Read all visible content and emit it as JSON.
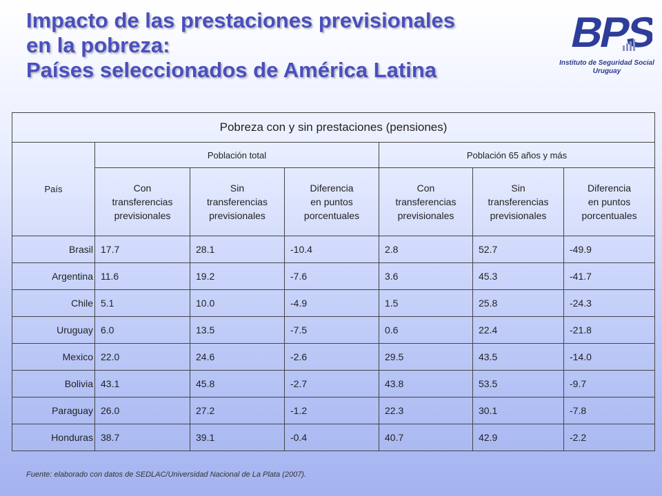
{
  "title": {
    "line1": "Impacto de las prestaciones previsionales",
    "line2": "en la pobreza:",
    "line3": "Países seleccionados de América Latina"
  },
  "logo": {
    "text": "BPS",
    "subtitle_line1": "Instituto de Seguridad Social",
    "subtitle_line2": "Uruguay",
    "colors": {
      "letters": "#2e3d99",
      "bars": "#8a93c4"
    }
  },
  "table": {
    "caption": "Pobreza con y sin prestaciones (pensiones)",
    "country_header": "País",
    "groups": [
      "Población total",
      "Población 65 años y más"
    ],
    "subheaders": [
      [
        "Con",
        "transferencias",
        "previsionales"
      ],
      [
        "Sin",
        "transferencias",
        "previsionales"
      ],
      [
        "Diferencia",
        "en puntos",
        "porcentuales"
      ],
      [
        "Con",
        "transferencias",
        "previsionales"
      ],
      [
        "Sin",
        "transferencias",
        "previsionales"
      ],
      [
        "Diferencia",
        "en puntos",
        "porcentuales"
      ]
    ],
    "rows": [
      [
        "Brasil",
        "17.7",
        "28.1",
        "-10.4",
        "2.8",
        "52.7",
        "-49.9"
      ],
      [
        "Argentina",
        "11.6",
        "19.2",
        "-7.6",
        "3.6",
        "45.3",
        "-41.7"
      ],
      [
        "Chile",
        "5.1",
        "10.0",
        "-4.9",
        "1.5",
        "25.8",
        "-24.3"
      ],
      [
        "Uruguay",
        "6.0",
        "13.5",
        "-7.5",
        "0.6",
        "22.4",
        "-21.8"
      ],
      [
        "Mexico",
        "22.0",
        "24.6",
        "-2.6",
        "29.5",
        "43.5",
        "-14.0"
      ],
      [
        "Bolivia",
        "43.1",
        "45.8",
        "-2.7",
        "43.8",
        "53.5",
        "-9.7"
      ],
      [
        "Paraguay",
        "26.0",
        "27.2",
        "-1.2",
        "22.3",
        "30.1",
        "-7.8"
      ],
      [
        "Honduras",
        "38.7",
        "39.1",
        "-0.4",
        "40.7",
        "42.9",
        "-2.2"
      ]
    ]
  },
  "source": "Fuente: elaborado con datos de SEDLAC/Universidad Nacional de La Plata (2007)."
}
